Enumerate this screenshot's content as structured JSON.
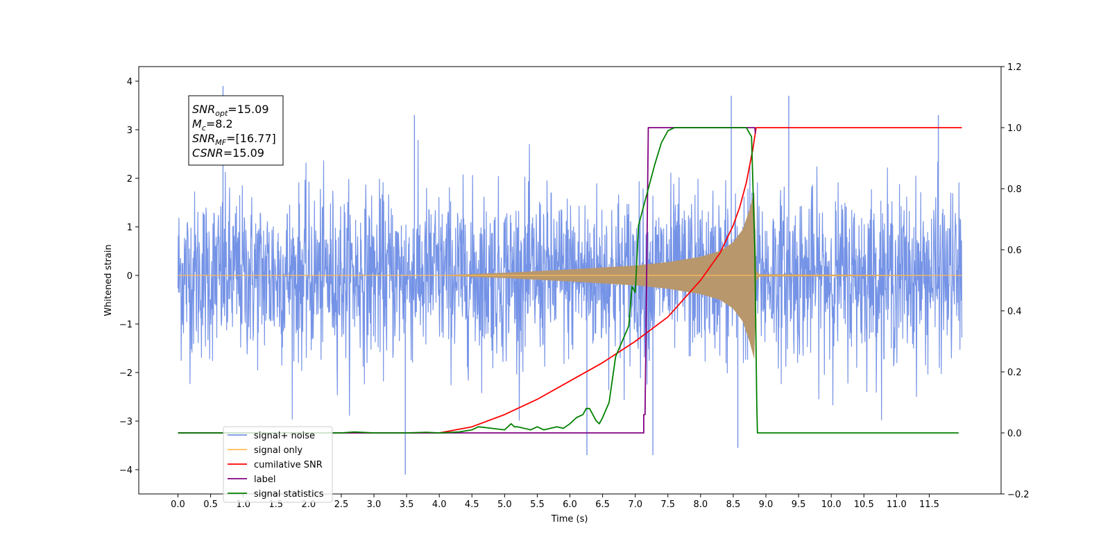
{
  "chart_data": {
    "type": "line",
    "title": "",
    "xlabel": "Time (s)",
    "ylabel": "Whitened strain",
    "y2label": "",
    "xlim": [
      -0.6,
      12.6
    ],
    "ylim": [
      -4.5,
      4.3
    ],
    "y2lim": [
      -0.2,
      1.2
    ],
    "x_ticks": [
      0.0,
      0.5,
      1.0,
      1.5,
      2.0,
      2.5,
      3.0,
      3.5,
      4.0,
      4.5,
      5.0,
      5.5,
      6.0,
      6.5,
      7.0,
      7.5,
      8.0,
      8.5,
      9.0,
      9.5,
      10.0,
      10.5,
      11.0,
      11.5
    ],
    "x_tick_labels": [
      "0.0",
      "0.5",
      "1.0",
      "1.5",
      "2.0",
      "2.5",
      "3.0",
      "3.5",
      "4.0",
      "4.5",
      "5.0",
      "5.5",
      "6.0",
      "6.5",
      "7.0",
      "7.5",
      "8.0",
      "8.5",
      "9.0",
      "9.5",
      "10.0",
      "10.5",
      "11.0",
      "11.5"
    ],
    "y_ticks": [
      4,
      3,
      2,
      1,
      0,
      -1,
      -2,
      -3,
      -4
    ],
    "y_tick_labels": [
      "4",
      "3",
      "2",
      "1",
      "0",
      "−1",
      "−2",
      "−3",
      "−4"
    ],
    "y2_ticks": [
      1.2,
      1.0,
      0.8,
      0.6,
      0.4,
      0.2,
      0.0,
      -0.2
    ],
    "y2_tick_labels": [
      "1.2",
      "1.0",
      "0.8",
      "0.6",
      "0.4",
      "0.2",
      "0.0",
      "−0.2"
    ],
    "grid": false,
    "legend_position": "lower-left",
    "annotation": {
      "lines": [
        {
          "sym": "SNR",
          "sub": "opt",
          "text": "=15.09"
        },
        {
          "sym": "M",
          "sub": "c",
          "text": "=8.2"
        },
        {
          "sym": "SNR",
          "sub": "MF",
          "text": "=[16.77]"
        },
        {
          "sym": "CSNR",
          "sub": "",
          "text": "=15.09"
        }
      ]
    },
    "series": [
      {
        "name": "signal+ noise",
        "axis": "left",
        "color": "#7593e6",
        "kind": "noise",
        "x_range": [
          0.0,
          12.0
        ],
        "amplitude_envelope": 2.2,
        "notable_peaks": [
          [
            0.69,
            3.9
          ],
          [
            3.48,
            -4.1
          ],
          [
            8.47,
            3.7
          ],
          [
            9.35,
            3.7
          ],
          [
            6.26,
            -3.7
          ],
          [
            7.27,
            -3.7
          ],
          [
            8.57,
            -3.55
          ],
          [
            3.62,
            3.3
          ],
          [
            11.64,
            3.3
          ]
        ]
      },
      {
        "name": "signal only",
        "axis": "left",
        "color": "#ffbb55",
        "kind": "chirp",
        "x": [
          0.0,
          4.0,
          5.0,
          6.0,
          7.0,
          7.5,
          8.0,
          8.3,
          8.5,
          8.65,
          8.75,
          8.82,
          8.85,
          8.9,
          12.0
        ],
        "envelope": [
          0.0,
          0.0,
          0.05,
          0.12,
          0.2,
          0.27,
          0.38,
          0.5,
          0.68,
          0.95,
          1.35,
          1.7,
          0.1,
          0.02,
          0.0
        ]
      },
      {
        "name": "cumilative SNR",
        "axis": "right",
        "color": "#ff0000",
        "x": [
          0.0,
          4.0,
          4.5,
          5.0,
          5.5,
          6.0,
          6.5,
          7.0,
          7.5,
          8.0,
          8.3,
          8.5,
          8.6,
          8.7,
          8.8,
          8.85,
          8.9,
          11.5,
          12.0
        ],
        "y": [
          0.0,
          0.0,
          0.02,
          0.06,
          0.11,
          0.17,
          0.23,
          0.3,
          0.38,
          0.5,
          0.59,
          0.68,
          0.74,
          0.82,
          0.93,
          1.0,
          1.0,
          1.0,
          1.0
        ]
      },
      {
        "name": "label",
        "axis": "right",
        "color": "#800080",
        "x": [
          0.0,
          7.13,
          7.13,
          7.15,
          7.2,
          8.83,
          8.84
        ],
        "y": [
          0.0,
          0.0,
          0.06,
          0.06,
          1.0,
          1.0,
          0.98
        ]
      },
      {
        "name": "signal statistics",
        "axis": "right",
        "color": "#008000",
        "x": [
          0.0,
          2.5,
          2.7,
          3.0,
          3.5,
          3.8,
          4.0,
          4.3,
          4.5,
          4.6,
          4.8,
          5.0,
          5.1,
          5.15,
          5.2,
          5.4,
          5.5,
          5.6,
          5.8,
          5.9,
          6.0,
          6.1,
          6.2,
          6.25,
          6.3,
          6.4,
          6.45,
          6.5,
          6.6,
          6.7,
          6.8,
          6.9,
          6.95,
          7.0,
          7.05,
          7.1,
          7.2,
          7.3,
          7.4,
          7.5,
          7.6,
          7.7,
          7.9,
          8.1,
          8.5,
          8.7,
          8.78,
          8.83,
          8.86,
          8.87,
          8.9,
          11.95
        ],
        "y": [
          0.0,
          0.0,
          0.003,
          0.0,
          0.0,
          0.002,
          0.0,
          0.003,
          0.01,
          0.02,
          0.015,
          0.01,
          0.03,
          0.02,
          0.02,
          0.01,
          0.02,
          0.01,
          0.02,
          0.015,
          0.03,
          0.05,
          0.06,
          0.08,
          0.08,
          0.04,
          0.03,
          0.05,
          0.1,
          0.25,
          0.3,
          0.35,
          0.48,
          0.46,
          0.68,
          0.72,
          0.8,
          0.88,
          0.95,
          0.99,
          1.0,
          1.0,
          1.0,
          1.0,
          1.0,
          1.0,
          0.97,
          0.6,
          0.1,
          0.0,
          0.0,
          0.0
        ]
      }
    ]
  }
}
